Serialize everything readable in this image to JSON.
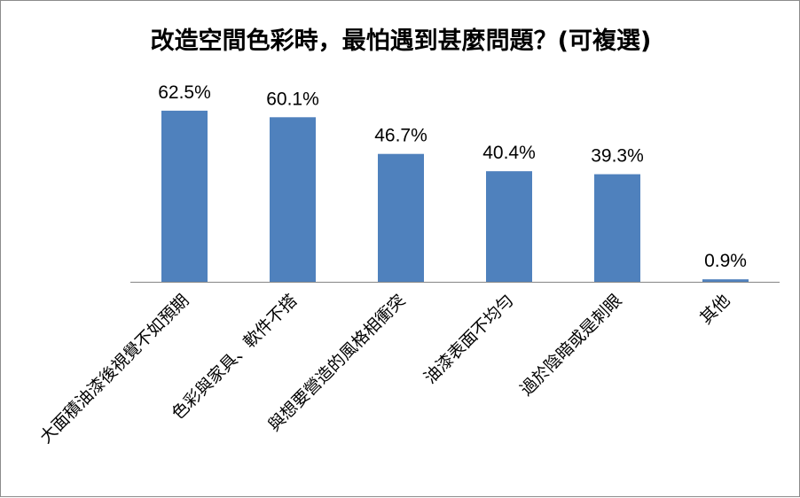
{
  "chart_data": {
    "type": "bar",
    "title": "改造空間色彩時，最怕遇到甚麼問題？(可複選)",
    "categories": [
      "大面積油漆後視覺不如預期",
      "色彩與家具、軟件不搭",
      "與想要營造的風格相衝突",
      "油漆表面不均勻",
      "過於陰暗或是刺眼",
      "其他"
    ],
    "values": [
      62.5,
      60.1,
      46.7,
      40.4,
      39.3,
      0.9
    ],
    "data_labels": [
      "62.5%",
      "60.1%",
      "46.7%",
      "40.4%",
      "39.3%",
      "0.9%"
    ],
    "xlabel": "",
    "ylabel": "",
    "ylim": [
      0,
      70
    ],
    "grid": false,
    "legend": "none",
    "bar_color": "#4f81bd",
    "axis_color": "#868686"
  }
}
